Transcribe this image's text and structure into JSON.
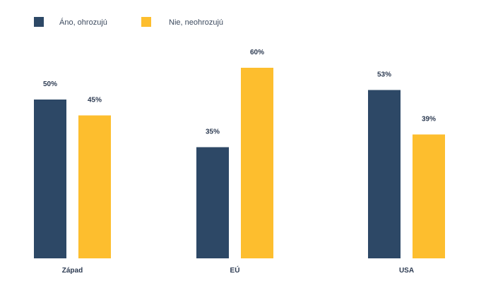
{
  "chart_data": {
    "type": "bar",
    "categories": [
      "Západ",
      "EÚ",
      "USA"
    ],
    "series": [
      {
        "name": "Áno, ohrozujú",
        "values": [
          50,
          35,
          53
        ],
        "labels": [
          "50%",
          "35%",
          "53%"
        ],
        "color": "#2d4866"
      },
      {
        "name": "Nie, neohrozujú",
        "values": [
          45,
          60,
          39
        ],
        "labels": [
          "45%",
          "60%",
          "39%"
        ],
        "color": "#fdbe2e"
      }
    ],
    "ylim": [
      0,
      100
    ],
    "grid": false,
    "legend_placement": "top-left"
  }
}
